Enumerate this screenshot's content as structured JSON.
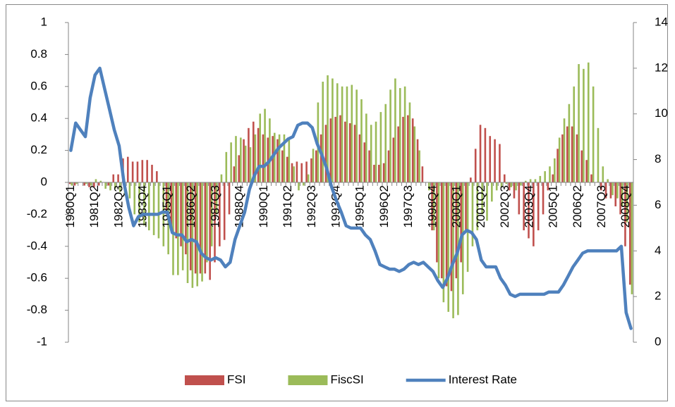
{
  "chart_data": {
    "type": "bar",
    "categories": [
      "1980Q1",
      null,
      null,
      null,
      null,
      "1981Q2",
      null,
      null,
      null,
      null,
      "1982Q3",
      null,
      null,
      null,
      null,
      "1983Q4",
      null,
      null,
      null,
      null,
      "1985Q1",
      null,
      null,
      null,
      null,
      "1986Q2",
      null,
      null,
      null,
      null,
      "1987Q3",
      null,
      null,
      null,
      null,
      "1988Q4",
      null,
      null,
      null,
      null,
      "1990Q1",
      null,
      null,
      null,
      null,
      "1991Q2",
      null,
      null,
      null,
      null,
      "1992Q3",
      null,
      null,
      null,
      null,
      "1993Q4",
      null,
      null,
      null,
      null,
      "1995Q1",
      null,
      null,
      null,
      null,
      "1996Q2",
      null,
      null,
      null,
      null,
      "1997Q3",
      null,
      null,
      null,
      null,
      "1998Q4",
      null,
      null,
      null,
      null,
      "2000Q1",
      null,
      null,
      null,
      null,
      "2001Q2",
      null,
      null,
      null,
      null,
      "2002Q3",
      null,
      null,
      null,
      null,
      "2003Q4",
      null,
      null,
      null,
      null,
      "2005Q1",
      null,
      null,
      null,
      null,
      "2006Q2",
      null,
      null,
      null,
      null,
      "2007Q3",
      null,
      null,
      null,
      null,
      "2008Q4",
      null
    ],
    "series": [
      {
        "name": "FSI",
        "type": "bar",
        "color": "#C0504D",
        "values": [
          -0.01,
          -0.02,
          0,
          -0.02,
          -0.03,
          -0.03,
          -0.02,
          0,
          -0.02,
          0.05,
          0.05,
          0.15,
          0.16,
          0.13,
          0.13,
          0.14,
          0.14,
          0.11,
          0.07,
          0,
          -0.2,
          -0.3,
          -0.35,
          -0.4,
          -0.45,
          -0.55,
          -0.57,
          -0.57,
          -0.57,
          -0.61,
          -0.5,
          -0.4,
          -0.36,
          -0.2,
          0.1,
          0.17,
          0.27,
          0.34,
          0.38,
          0.34,
          0.3,
          0.28,
          0.29,
          0.27,
          0.2,
          0.16,
          0.12,
          0.13,
          0.12,
          0.13,
          0.15,
          0.2,
          0.3,
          0.36,
          0.4,
          0.41,
          0.42,
          0.38,
          0.37,
          0.36,
          0.3,
          0.25,
          0.2,
          0.11,
          0.11,
          0.12,
          0.2,
          0.28,
          0.35,
          0.41,
          0.42,
          0.4,
          0.27,
          0.1,
          0,
          -0.3,
          -0.5,
          -0.6,
          -0.65,
          -0.68,
          -0.6,
          -0.5,
          -0.3,
          0.03,
          0.21,
          0.36,
          0.34,
          0.29,
          0.27,
          0.24,
          0.05,
          -0.05,
          -0.1,
          -0.2,
          -0.3,
          -0.35,
          -0.4,
          -0.3,
          -0.2,
          -0.05,
          0.05,
          0.21,
          0.3,
          0.35,
          0.35,
          0.3,
          0.2,
          0.14,
          0.05,
          0,
          -0.05,
          -0.1,
          -0.1,
          -0.15,
          -0.2,
          -0.4,
          -0.64
        ]
      },
      {
        "name": "FiscSI",
        "type": "bar",
        "color": "#9BBB59",
        "values": [
          -0.02,
          -0.01,
          0,
          -0.01,
          -0.02,
          0.02,
          0.01,
          -0.04,
          -0.05,
          -0.04,
          -0.06,
          -0.08,
          -0.1,
          -0.2,
          -0.25,
          -0.27,
          -0.3,
          -0.33,
          -0.35,
          -0.4,
          -0.45,
          -0.58,
          -0.58,
          -0.55,
          -0.63,
          -0.66,
          -0.65,
          -0.62,
          -0.5,
          -0.4,
          -0.2,
          0.05,
          0.19,
          0.25,
          0.29,
          0.28,
          0.23,
          0.22,
          0.3,
          0.43,
          0.46,
          0.4,
          0.31,
          0.3,
          0.3,
          0.27,
          0.1,
          -0.05,
          -0.02,
          0.05,
          0.21,
          0.5,
          0.63,
          0.67,
          0.65,
          0.62,
          0.6,
          0.6,
          0.61,
          0.58,
          0.52,
          0.43,
          0.36,
          0.38,
          0.44,
          0.49,
          0.58,
          0.65,
          0.59,
          0.6,
          0.5,
          0.35,
          0.2,
          0,
          -0.05,
          -0.3,
          -0.6,
          -0.75,
          -0.81,
          -0.85,
          -0.83,
          -0.7,
          -0.56,
          -0.4,
          -0.3,
          -0.2,
          -0.24,
          -0.12,
          -0.05,
          -0.03,
          -0.01,
          -0.03,
          -0.05,
          -0.02,
          0.01,
          0.02,
          0.02,
          0.04,
          0.07,
          0.1,
          0.15,
          0.28,
          0.4,
          0.49,
          0.6,
          0.74,
          0.71,
          0.75,
          0.6,
          0.34,
          0.1,
          0.02,
          -0.08,
          -0.1,
          -0.15,
          -0.25,
          -0.7
        ]
      },
      {
        "name": "Interest Rate",
        "type": "line",
        "axis": "y2",
        "color": "#4F81BD",
        "values": [
          8.4,
          9.6,
          9.3,
          9.0,
          10.7,
          11.7,
          12.0,
          11.1,
          10.2,
          9.3,
          8.6,
          7.0,
          5.9,
          5.1,
          5.5,
          5.6,
          5.6,
          5.6,
          5.6,
          5.7,
          5.7,
          4.8,
          4.7,
          4.7,
          4.4,
          4.5,
          4.4,
          3.9,
          3.7,
          3.6,
          3.7,
          3.6,
          3.3,
          3.5,
          4.5,
          5.1,
          5.7,
          6.7,
          7.3,
          7.7,
          7.7,
          7.9,
          8.2,
          8.5,
          8.7,
          8.9,
          9.0,
          9.5,
          9.6,
          9.6,
          9.4,
          8.7,
          8.2,
          7.6,
          6.8,
          6.2,
          5.7,
          5.1,
          5.0,
          5.0,
          5.0,
          4.7,
          4.5,
          4.0,
          3.4,
          3.3,
          3.2,
          3.2,
          3.1,
          3.2,
          3.4,
          3.5,
          3.4,
          3.5,
          3.3,
          3.1,
          2.7,
          2.4,
          2.8,
          3.4,
          3.9,
          4.7,
          4.9,
          4.8,
          4.5,
          3.6,
          3.3,
          3.3,
          3.3,
          2.8,
          2.5,
          2.1,
          2.0,
          2.1,
          2.1,
          2.1,
          2.1,
          2.1,
          2.1,
          2.2,
          2.2,
          2.2,
          2.5,
          2.9,
          3.3,
          3.6,
          3.9,
          4.0,
          4.0,
          4.0,
          4.0,
          4.0,
          4.0,
          4.0,
          4.2,
          1.3,
          0.6
        ]
      }
    ],
    "ylim": [
      -1,
      1
    ],
    "yticks": [
      -1,
      -0.8,
      -0.6,
      -0.4,
      -0.2,
      0,
      0.2,
      0.4,
      0.6,
      0.8,
      1
    ],
    "y2lim": [
      0,
      14
    ],
    "y2ticks": [
      0,
      2,
      4,
      6,
      8,
      10,
      12,
      14
    ],
    "legend": "bottom"
  }
}
